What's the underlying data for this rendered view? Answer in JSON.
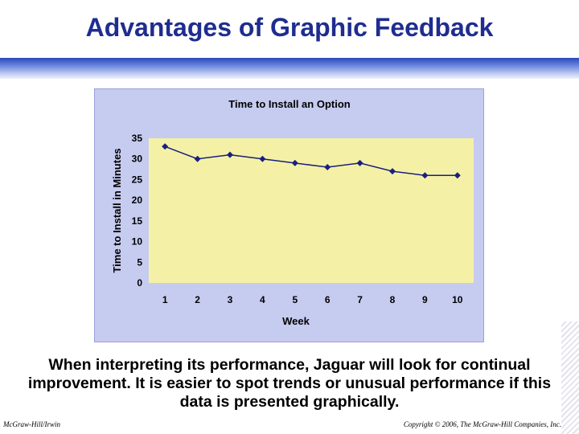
{
  "slide": {
    "title": "Advantages of Graphic Feedback",
    "caption": "When interpreting its performance, Jaguar will look for continual improvement.  It is easier to spot trends or unusual performance if this data is presented graphically.",
    "footer_left": "McGraw-Hill/Irwin",
    "footer_right": "Copyright © 2006, The McGraw-Hill Companies, Inc."
  },
  "colors": {
    "title": "#1f2d8f",
    "chart_frame": "#c6cbf0",
    "plot_area": "#f4f1a6",
    "line": "#1a1f80"
  },
  "chart_data": {
    "type": "line",
    "title": "Time to Install an Option",
    "xlabel": "Week",
    "ylabel": "Time to Install in Minutes",
    "x": [
      1,
      2,
      3,
      4,
      5,
      6,
      7,
      8,
      9,
      10
    ],
    "y_ticks": [
      0,
      5,
      10,
      15,
      20,
      25,
      30,
      35
    ],
    "ylim": [
      0,
      35
    ],
    "grid": false,
    "legend": "none",
    "marker": "diamond",
    "series": [
      {
        "values": [
          33,
          30,
          31,
          30,
          29,
          28,
          29,
          27,
          26,
          26
        ]
      }
    ]
  }
}
